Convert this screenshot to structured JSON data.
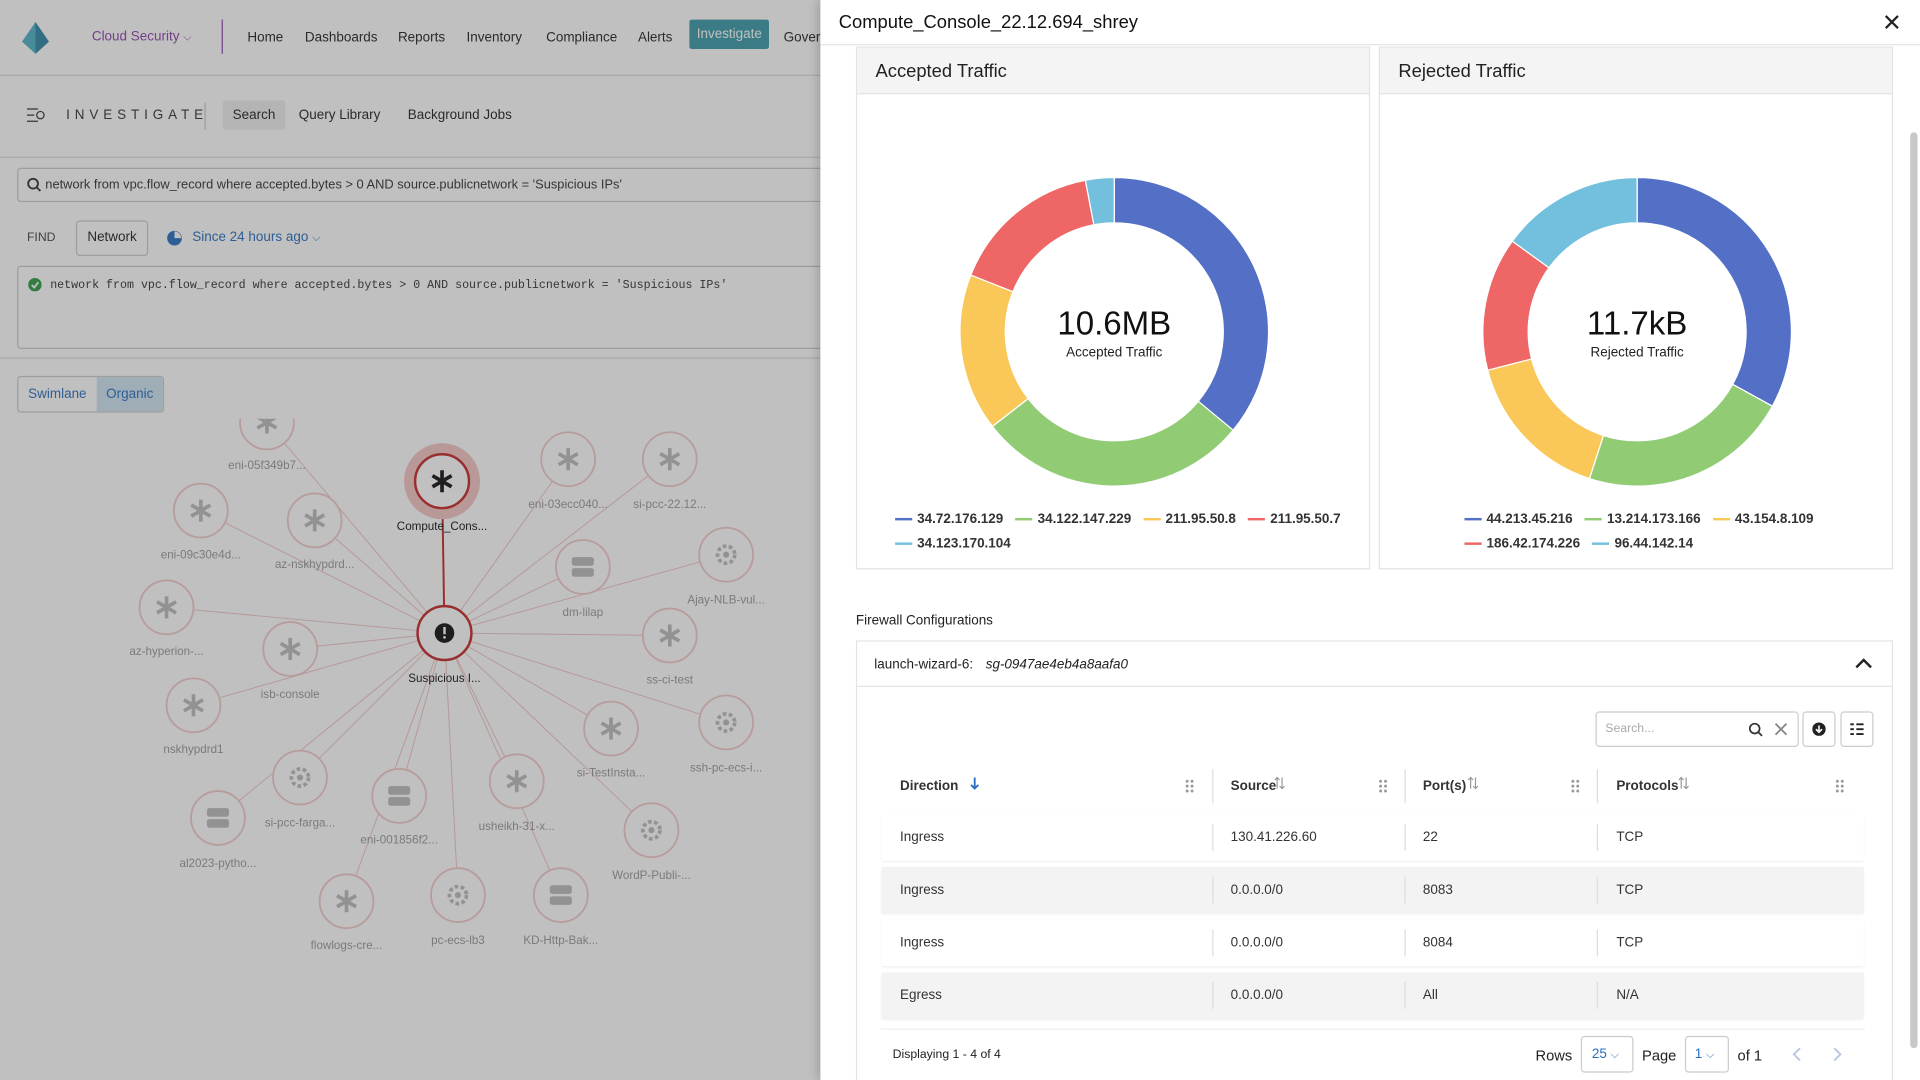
{
  "nav": {
    "product": "Cloud Security",
    "items": [
      "Home",
      "Dashboards",
      "Reports",
      "Inventory",
      "Compliance",
      "Alerts",
      "Investigate",
      "Gover"
    ],
    "active": "Investigate"
  },
  "investigate": {
    "title": "INVESTIGATE",
    "tabs": [
      "Search",
      "Query Library",
      "Background Jobs"
    ],
    "active_tab": "Search",
    "search_query": "network from vpc.flow_record where accepted.bytes > 0 AND source.publicnetwork = 'Suspicious IPs'",
    "find_label": "FIND",
    "find_type": "Network",
    "time_range": "Since 24 hours ago",
    "editor_query": "network from vpc.flow_record where accepted.bytes > 0 AND source.publicnetwork = 'Suspicious IPs'",
    "views": [
      "Swimlane",
      "Organic"
    ],
    "active_view": "Organic"
  },
  "graph": {
    "nodes": [
      {
        "label": "eni-05f349b7...",
        "kind": "asterisk"
      },
      {
        "label": "Compute_Cons...",
        "kind": "selected"
      },
      {
        "label": "eni-03ecc040...",
        "kind": "asterisk"
      },
      {
        "label": "si-pcc-22.12...",
        "kind": "asterisk"
      },
      {
        "label": "eni-09c30e4d...",
        "kind": "asterisk"
      },
      {
        "label": "az-nskhypdrd...",
        "kind": "asterisk"
      },
      {
        "label": "dm-lilap",
        "kind": "server"
      },
      {
        "label": "Ajay-NLB-vul...",
        "kind": "gear"
      },
      {
        "label": "az-hyperion-...",
        "kind": "asterisk"
      },
      {
        "label": "Suspicious I...",
        "kind": "alert"
      },
      {
        "label": "ss-ci-test",
        "kind": "asterisk"
      },
      {
        "label": "isb-console",
        "kind": "asterisk"
      },
      {
        "label": "nskhypdrd1",
        "kind": "asterisk"
      },
      {
        "label": "si-TestInsta...",
        "kind": "asterisk"
      },
      {
        "label": "ssh-pc-ecs-i...",
        "kind": "gear"
      },
      {
        "label": "si-pcc-farga...",
        "kind": "gear"
      },
      {
        "label": "eni-001856f2...",
        "kind": "server"
      },
      {
        "label": "usheikh-31-x...",
        "kind": "asterisk"
      },
      {
        "label": "al2023-pytho...",
        "kind": "server"
      },
      {
        "label": "WordP-Publi-...",
        "kind": "gear"
      },
      {
        "label": "flowlogs-cre...",
        "kind": "asterisk"
      },
      {
        "label": "pc-ecs-lb3",
        "kind": "gear"
      },
      {
        "label": "KD-Http-Bak...",
        "kind": "server"
      }
    ]
  },
  "drawer": {
    "title": "Compute_Console_22.12.694_shrey"
  },
  "chart_data": [
    {
      "type": "pie",
      "title": "Accepted Traffic",
      "center_value": "10.6MB",
      "center_label": "Accepted Traffic",
      "categories": [
        "34.72.176.129",
        "34.122.147.229",
        "211.95.50.8",
        "211.95.50.7",
        "34.123.170.104"
      ],
      "values": [
        36,
        28.5,
        16.5,
        16,
        3
      ],
      "colors": [
        "#5470c6",
        "#91cc75",
        "#fac858",
        "#ee6666",
        "#73c0de"
      ]
    },
    {
      "type": "pie",
      "title": "Rejected Traffic",
      "center_value": "11.7kB",
      "center_label": "Rejected Traffic",
      "categories": [
        "44.213.45.216",
        "13.214.173.166",
        "43.154.8.109",
        "186.42.174.226",
        "96.44.142.14"
      ],
      "values": [
        33,
        22,
        16,
        14,
        15
      ],
      "colors": [
        "#5470c6",
        "#91cc75",
        "#fac858",
        "#ee6666",
        "#73c0de"
      ]
    }
  ],
  "firewall": {
    "title": "Firewall Configurations",
    "group_name": "launch-wizard-6:",
    "group_id": "sg-0947ae4eb4a8aafa0",
    "search_placeholder": "Search...",
    "columns": [
      "Direction",
      "Source",
      "Port(s)",
      "Protocols"
    ],
    "sorted_column": "Direction",
    "rows": [
      [
        "Ingress",
        "130.41.226.60",
        22,
        "TCP"
      ],
      [
        "Ingress",
        "0.0.0.0/0",
        8083,
        "TCP"
      ],
      [
        "Ingress",
        "0.0.0.0/0",
        8084,
        "TCP"
      ],
      [
        "Egress",
        "0.0.0.0/0",
        "All",
        "N/A"
      ]
    ],
    "footer": "Displaying 1 - 4 of 4",
    "rows_label": "Rows",
    "rows_per_page": 25,
    "page_label": "Page",
    "page": 1,
    "page_count": "of 1"
  }
}
